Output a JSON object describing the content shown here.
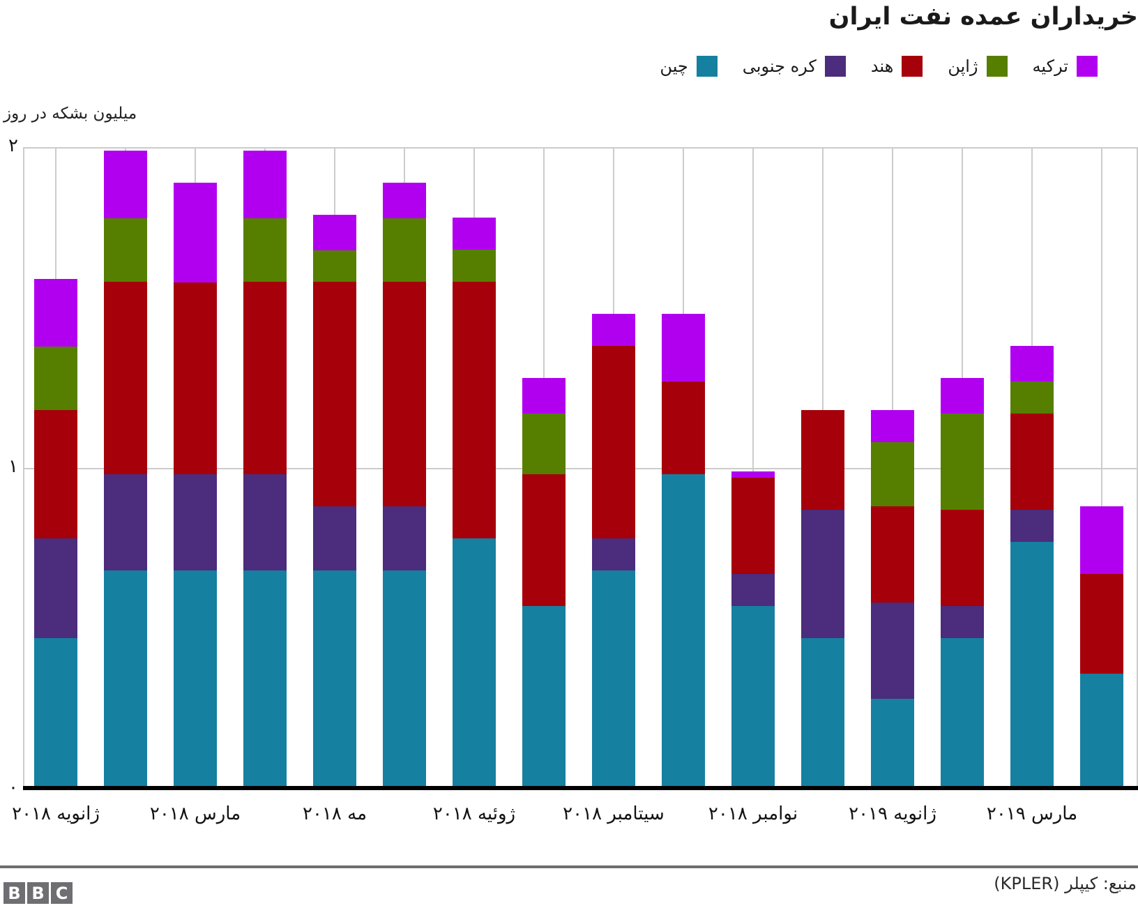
{
  "title": "خریداران عمده نفت ایران",
  "y_axis_title": "میلیون بشکه در روز",
  "y_ticks": [
    {
      "value": 2,
      "label": "۲"
    },
    {
      "value": 1,
      "label": "۱"
    },
    {
      "value": 0,
      "label": "۰"
    }
  ],
  "legend": {
    "position": "top-right",
    "items": [
      {
        "label": "ترکیه",
        "color": "#b100f0"
      },
      {
        "label": "ژاپن",
        "color": "#567f00"
      },
      {
        "label": "هند",
        "color": "#a6000a"
      },
      {
        "label": "کره جنوبی",
        "color": "#4c2c7c"
      },
      {
        "label": "چین",
        "color": "#1680a0"
      }
    ]
  },
  "footer": {
    "divider_color": "#6e6e6e",
    "logo_blocks": [
      "B",
      "B",
      "C"
    ],
    "source": "منبع: کیپلر (KPLER)"
  },
  "chart_data": {
    "type": "bar",
    "stacked": true,
    "title": "خریداران عمده نفت ایران",
    "ylabel": "میلیون بشکه در روز",
    "ylim": [
      0,
      2
    ],
    "grid": true,
    "bar_count": 16,
    "x_tick_labels": [
      {
        "bar_index": 0,
        "label": "ژانویه ۲۰۱۸"
      },
      {
        "bar_index": 2,
        "label": "مارس ۲۰۱۸"
      },
      {
        "bar_index": 4,
        "label": "مه ۲۰۱۸"
      },
      {
        "bar_index": 6,
        "label": "ژوئیه ۲۰۱۸"
      },
      {
        "bar_index": 8,
        "label": "سیتامبر ۲۰۱۸"
      },
      {
        "bar_index": 10,
        "label": "نوامبر ۲۰۱۸"
      },
      {
        "bar_index": 12,
        "label": "ژانویه ۲۰۱۹"
      },
      {
        "bar_index": 14,
        "label": "مارس ۲۰۱۹"
      }
    ],
    "series": [
      {
        "name": "چین",
        "color": "#1680a0",
        "values": [
          0.47,
          0.68,
          0.68,
          0.68,
          0.68,
          0.68,
          0.78,
          0.57,
          0.68,
          0.98,
          0.57,
          0.47,
          0.28,
          0.47,
          0.77,
          0.36
        ]
      },
      {
        "name": "کره جنوبی",
        "color": "#4c2c7c",
        "values": [
          0.31,
          0.3,
          0.3,
          0.3,
          0.2,
          0.2,
          0.0,
          0.0,
          0.1,
          0.0,
          0.1,
          0.4,
          0.3,
          0.1,
          0.1,
          0.0
        ]
      },
      {
        "name": "هند",
        "color": "#a6000a",
        "values": [
          0.4,
          0.6,
          0.6,
          0.6,
          0.7,
          0.7,
          0.8,
          0.41,
          0.6,
          0.29,
          0.3,
          0.31,
          0.3,
          0.3,
          0.3,
          0.31
        ]
      },
      {
        "name": "ژاپن",
        "color": "#567f00",
        "values": [
          0.2,
          0.2,
          0.0,
          0.2,
          0.1,
          0.2,
          0.1,
          0.19,
          0.0,
          0.0,
          0.0,
          0.0,
          0.2,
          0.3,
          0.1,
          0.0
        ]
      },
      {
        "name": "ترکیه",
        "color": "#b100f0",
        "values": [
          0.21,
          0.21,
          0.31,
          0.21,
          0.11,
          0.11,
          0.1,
          0.11,
          0.1,
          0.21,
          0.02,
          0.0,
          0.1,
          0.11,
          0.11,
          0.21
        ]
      }
    ]
  }
}
